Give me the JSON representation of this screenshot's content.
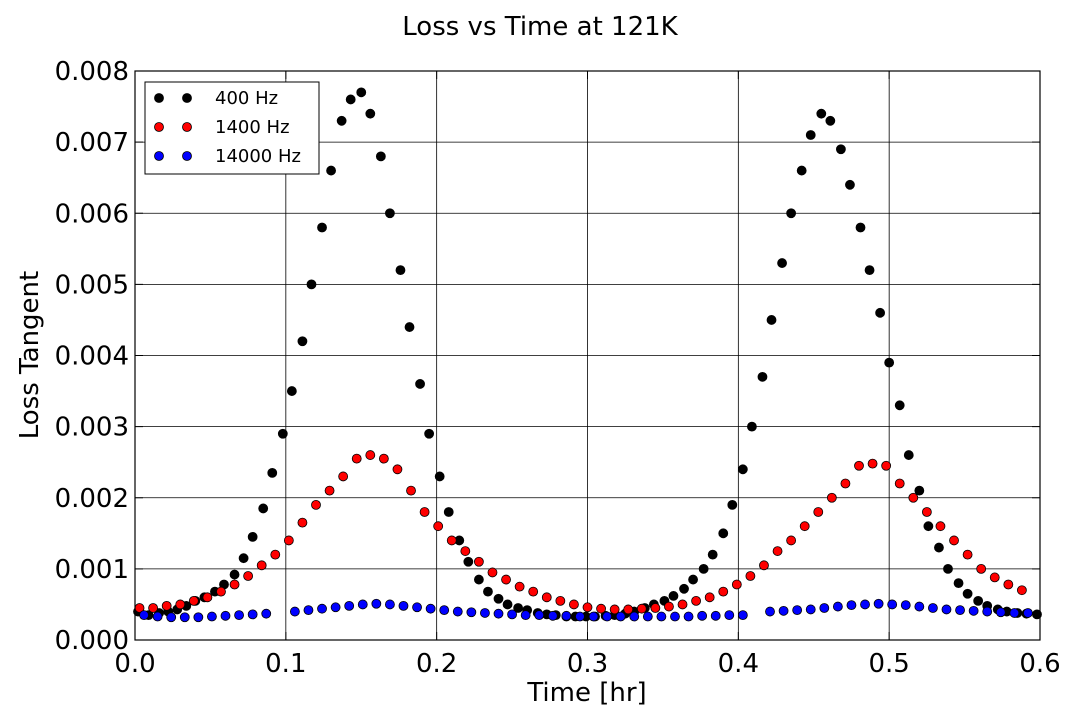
{
  "chart_data": {
    "type": "scatter",
    "title": "Loss vs Time at 121K",
    "xlabel": "Time [hr]",
    "ylabel": "Loss Tangent",
    "xlim": [
      0.0,
      0.6
    ],
    "ylim": [
      0.0,
      0.008
    ],
    "xticks": [
      "0.0",
      "0.1",
      "0.2",
      "0.3",
      "0.4",
      "0.5",
      "0.6"
    ],
    "yticks": [
      "0.000",
      "0.001",
      "0.002",
      "0.003",
      "0.004",
      "0.005",
      "0.006",
      "0.007",
      "0.008"
    ],
    "grid": true,
    "legend_position": "top-left",
    "series": [
      {
        "name": "400 Hz",
        "color": "#000000",
        "x": [
          0.002,
          0.009,
          0.016,
          0.022,
          0.028,
          0.034,
          0.04,
          0.046,
          0.053,
          0.059,
          0.066,
          0.072,
          0.078,
          0.085,
          0.091,
          0.098,
          0.104,
          0.111,
          0.117,
          0.124,
          0.13,
          0.137,
          0.143,
          0.15,
          0.156,
          0.163,
          0.169,
          0.176,
          0.182,
          0.189,
          0.195,
          0.202,
          0.208,
          0.215,
          0.221,
          0.228,
          0.234,
          0.241,
          0.247,
          0.254,
          0.26,
          0.267,
          0.273,
          0.279,
          0.286,
          0.292,
          0.299,
          0.305,
          0.312,
          0.318,
          0.325,
          0.331,
          0.338,
          0.344,
          0.351,
          0.357,
          0.364,
          0.37,
          0.377,
          0.383,
          0.39,
          0.396,
          0.403,
          0.409,
          0.416,
          0.422,
          0.429,
          0.435,
          0.442,
          0.448,
          0.455,
          0.461,
          0.468,
          0.474,
          0.481,
          0.487,
          0.494,
          0.5,
          0.507,
          0.513,
          0.52,
          0.526,
          0.533,
          0.539,
          0.546,
          0.552,
          0.559,
          0.565,
          0.572,
          0.578,
          0.585,
          0.591,
          0.598
        ],
        "y": [
          0.0004,
          0.00035,
          0.00038,
          0.0004,
          0.00043,
          0.00048,
          0.00055,
          0.0006,
          0.00068,
          0.00078,
          0.00092,
          0.00115,
          0.00145,
          0.00185,
          0.00235,
          0.0029,
          0.0035,
          0.0042,
          0.005,
          0.0058,
          0.0066,
          0.0073,
          0.0076,
          0.0077,
          0.0074,
          0.0068,
          0.006,
          0.0052,
          0.0044,
          0.0036,
          0.0029,
          0.0023,
          0.0018,
          0.0014,
          0.0011,
          0.00085,
          0.00068,
          0.00058,
          0.0005,
          0.00045,
          0.00042,
          0.00038,
          0.00036,
          0.00035,
          0.00033,
          0.00033,
          0.00033,
          0.00033,
          0.00034,
          0.00035,
          0.00037,
          0.0004,
          0.00045,
          0.0005,
          0.00055,
          0.00062,
          0.00072,
          0.00085,
          0.001,
          0.0012,
          0.0015,
          0.0019,
          0.0024,
          0.003,
          0.0037,
          0.0045,
          0.0053,
          0.006,
          0.0066,
          0.0071,
          0.0074,
          0.0073,
          0.0069,
          0.0064,
          0.0058,
          0.0052,
          0.0046,
          0.0039,
          0.0033,
          0.0026,
          0.0021,
          0.0016,
          0.0013,
          0.001,
          0.0008,
          0.00065,
          0.00055,
          0.00048,
          0.00043,
          0.0004,
          0.00038,
          0.00037,
          0.00036
        ]
      },
      {
        "name": "1400 Hz",
        "color": "#ff0000",
        "x": [
          0.003,
          0.012,
          0.021,
          0.03,
          0.039,
          0.048,
          0.057,
          0.066,
          0.075,
          0.084,
          0.093,
          0.102,
          0.111,
          0.12,
          0.129,
          0.138,
          0.147,
          0.156,
          0.165,
          0.174,
          0.183,
          0.192,
          0.201,
          0.21,
          0.219,
          0.228,
          0.237,
          0.246,
          0.255,
          0.264,
          0.273,
          0.282,
          0.291,
          0.3,
          0.309,
          0.318,
          0.327,
          0.336,
          0.345,
          0.354,
          0.363,
          0.372,
          0.381,
          0.39,
          0.399,
          0.408,
          0.417,
          0.426,
          0.435,
          0.444,
          0.453,
          0.462,
          0.471,
          0.48,
          0.489,
          0.498,
          0.507,
          0.516,
          0.525,
          0.534,
          0.543,
          0.552,
          0.561,
          0.57,
          0.579,
          0.588
        ],
        "y": [
          0.00045,
          0.00045,
          0.00048,
          0.0005,
          0.00055,
          0.0006,
          0.00068,
          0.00078,
          0.0009,
          0.00105,
          0.0012,
          0.0014,
          0.00165,
          0.0019,
          0.0021,
          0.0023,
          0.00255,
          0.0026,
          0.00255,
          0.0024,
          0.0021,
          0.0018,
          0.0016,
          0.0014,
          0.00125,
          0.0011,
          0.00095,
          0.00085,
          0.00075,
          0.00068,
          0.0006,
          0.00055,
          0.0005,
          0.00046,
          0.00044,
          0.00043,
          0.00043,
          0.00044,
          0.00045,
          0.00047,
          0.0005,
          0.00055,
          0.0006,
          0.00068,
          0.00078,
          0.0009,
          0.00105,
          0.00125,
          0.0014,
          0.0016,
          0.0018,
          0.002,
          0.0022,
          0.00245,
          0.00248,
          0.00245,
          0.0022,
          0.002,
          0.0018,
          0.0016,
          0.0014,
          0.0012,
          0.001,
          0.00088,
          0.00078,
          0.0007
        ]
      },
      {
        "name": "14000 Hz",
        "color": "#0000ff",
        "x": [
          0.006,
          0.015,
          0.024,
          0.033,
          0.042,
          0.051,
          0.06,
          0.069,
          0.078,
          0.087,
          0.106,
          0.115,
          0.124,
          0.133,
          0.142,
          0.151,
          0.16,
          0.169,
          0.178,
          0.187,
          0.196,
          0.205,
          0.214,
          0.223,
          0.232,
          0.241,
          0.25,
          0.259,
          0.268,
          0.277,
          0.286,
          0.295,
          0.304,
          0.313,
          0.322,
          0.331,
          0.34,
          0.349,
          0.358,
          0.367,
          0.376,
          0.385,
          0.394,
          0.403,
          0.421,
          0.43,
          0.439,
          0.448,
          0.457,
          0.466,
          0.475,
          0.484,
          0.493,
          0.502,
          0.511,
          0.52,
          0.529,
          0.538,
          0.547,
          0.556,
          0.565,
          0.574,
          0.583,
          0.592
        ],
        "y": [
          0.00035,
          0.00033,
          0.00032,
          0.00032,
          0.00032,
          0.00033,
          0.00034,
          0.00035,
          0.00036,
          0.00037,
          0.0004,
          0.00042,
          0.00044,
          0.00046,
          0.00048,
          0.0005,
          0.00051,
          0.0005,
          0.00048,
          0.00046,
          0.00044,
          0.00042,
          0.0004,
          0.00039,
          0.00038,
          0.00037,
          0.00036,
          0.00035,
          0.00035,
          0.00034,
          0.00034,
          0.00033,
          0.00033,
          0.00033,
          0.00033,
          0.00033,
          0.00033,
          0.00033,
          0.00033,
          0.00033,
          0.00034,
          0.00034,
          0.00035,
          0.00035,
          0.0004,
          0.00041,
          0.00042,
          0.00043,
          0.00045,
          0.00047,
          0.00049,
          0.0005,
          0.00051,
          0.0005,
          0.00049,
          0.00047,
          0.00045,
          0.00043,
          0.00042,
          0.00041,
          0.0004,
          0.00039,
          0.00038,
          0.00038
        ]
      }
    ]
  }
}
